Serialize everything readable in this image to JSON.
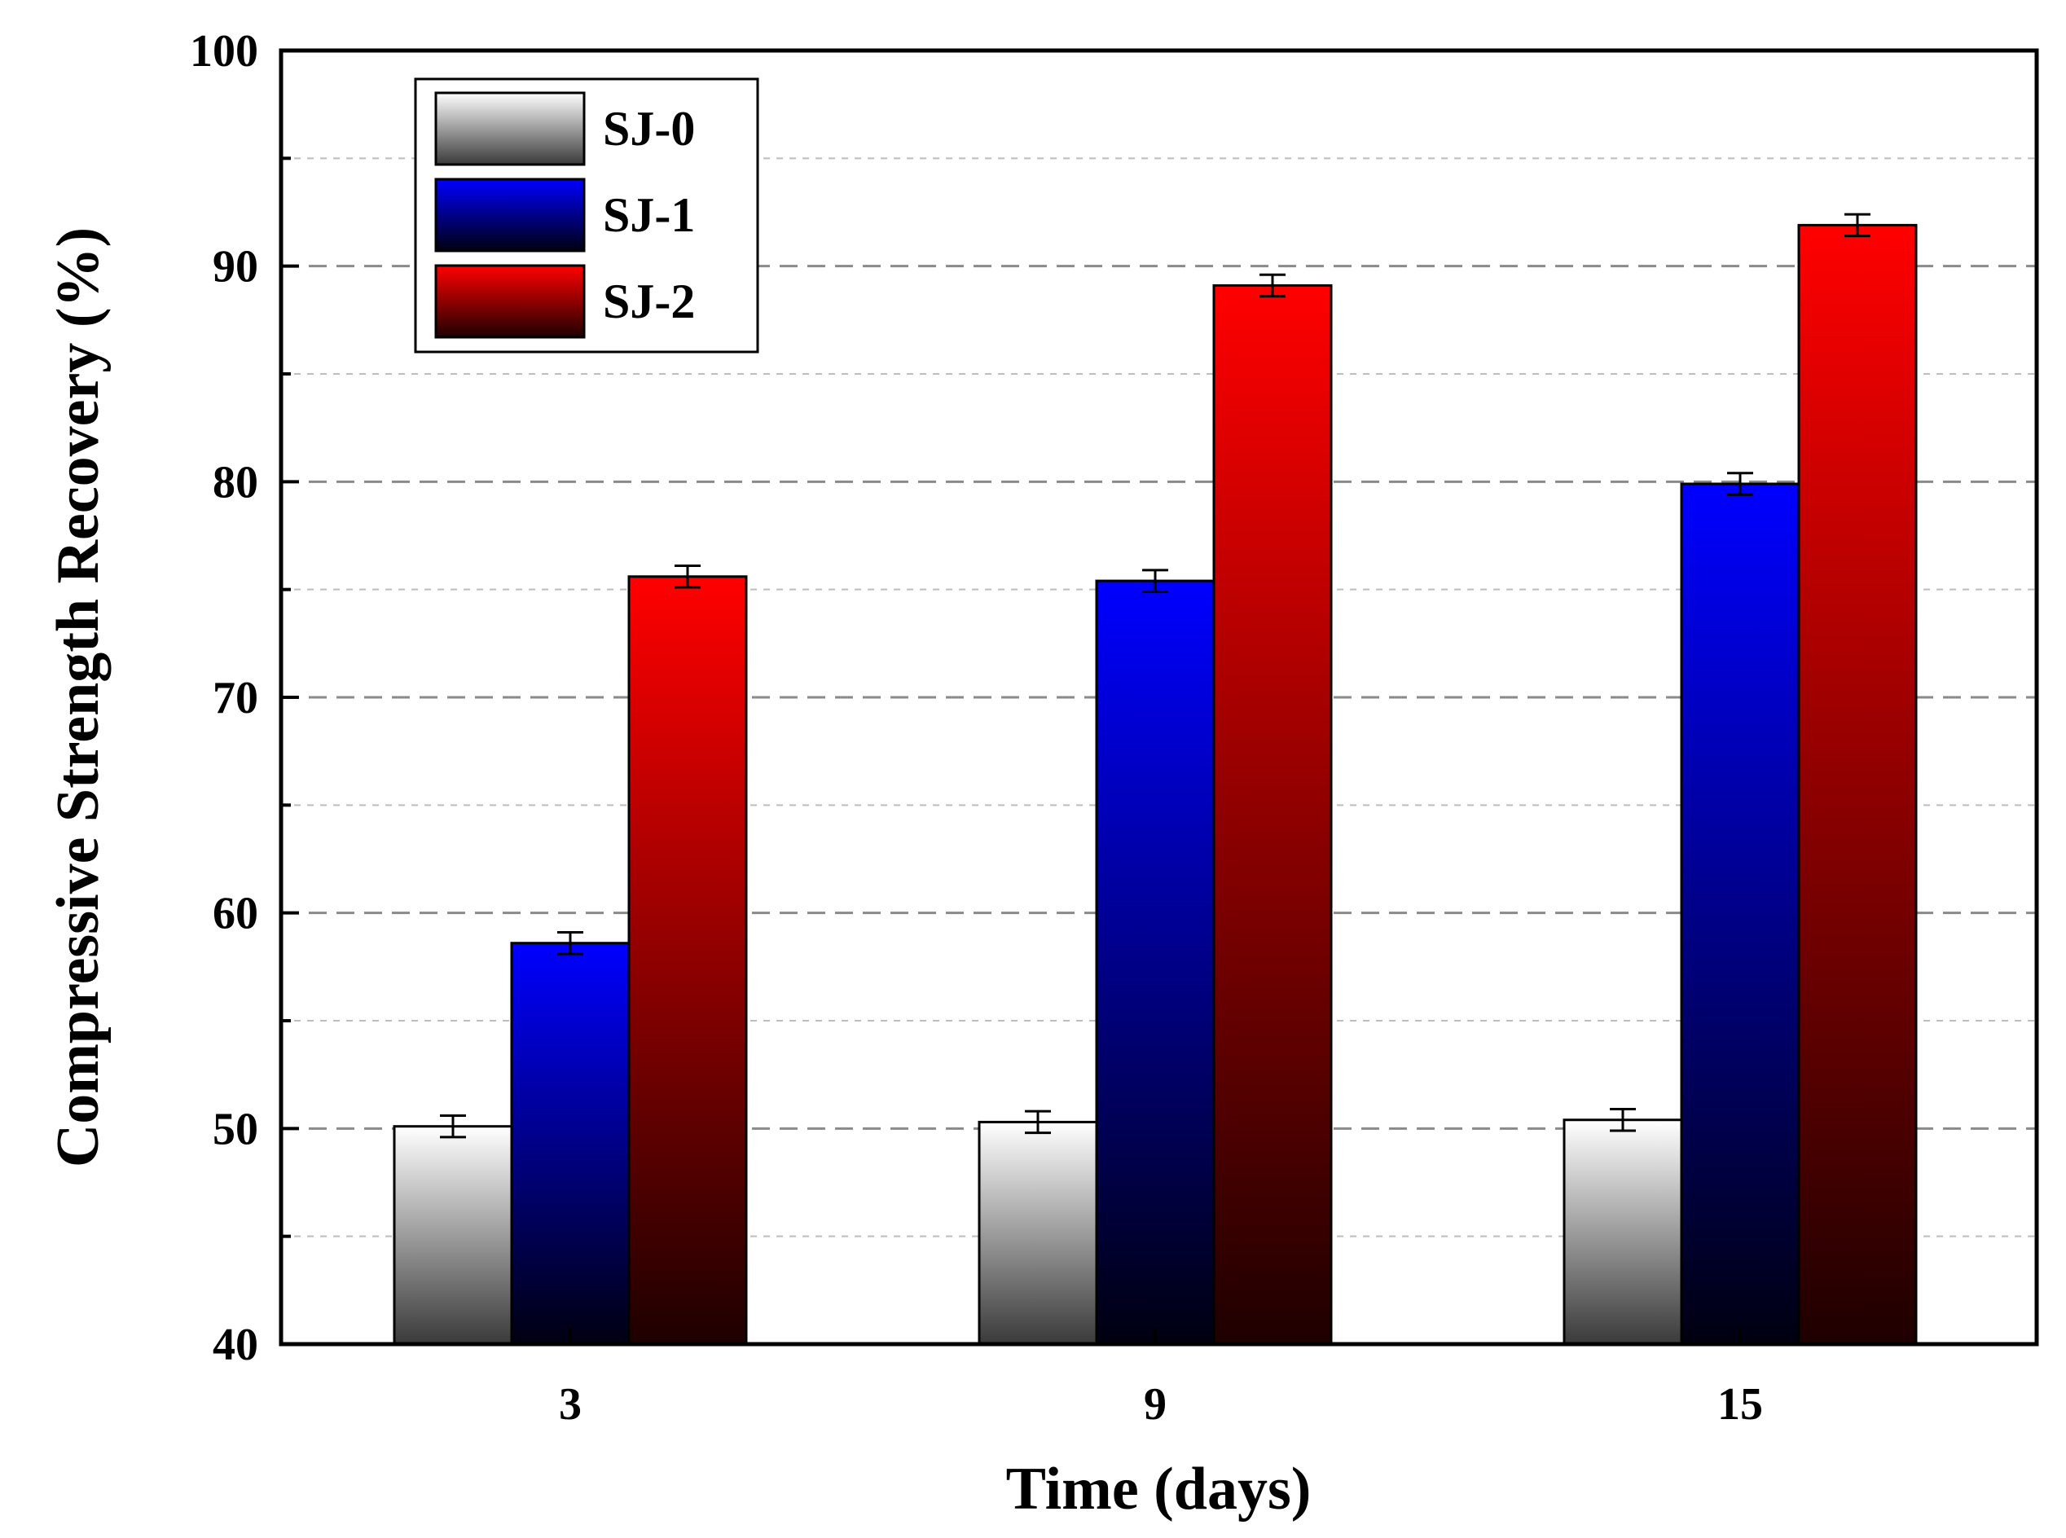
{
  "chart_data": {
    "type": "bar",
    "title": "",
    "xlabel": "Time (days)",
    "ylabel": "Compressive Strength Recovery  (%)",
    "categories": [
      "3",
      "9",
      "15"
    ],
    "ylim": [
      40,
      100
    ],
    "yticks": [
      "40",
      "50",
      "60",
      "70",
      "80",
      "90",
      "100"
    ],
    "grid": true,
    "legend_position": "top-left",
    "series": [
      {
        "name": "SJ-0",
        "values": [
          50.1,
          50.3,
          50.4
        ],
        "errors": [
          0.5,
          0.5,
          0.5
        ],
        "color_top": "#ffffff",
        "color_bottom": "#3a3a3a"
      },
      {
        "name": "SJ-1",
        "values": [
          58.6,
          75.4,
          79.9
        ],
        "errors": [
          0.5,
          0.5,
          0.5
        ],
        "color_top": "#0000ff",
        "color_bottom": "#000010"
      },
      {
        "name": "SJ-2",
        "values": [
          75.6,
          89.1,
          91.9
        ],
        "errors": [
          0.5,
          0.5,
          0.5
        ],
        "color_top": "#ff0000",
        "color_bottom": "#1e0000"
      }
    ]
  }
}
